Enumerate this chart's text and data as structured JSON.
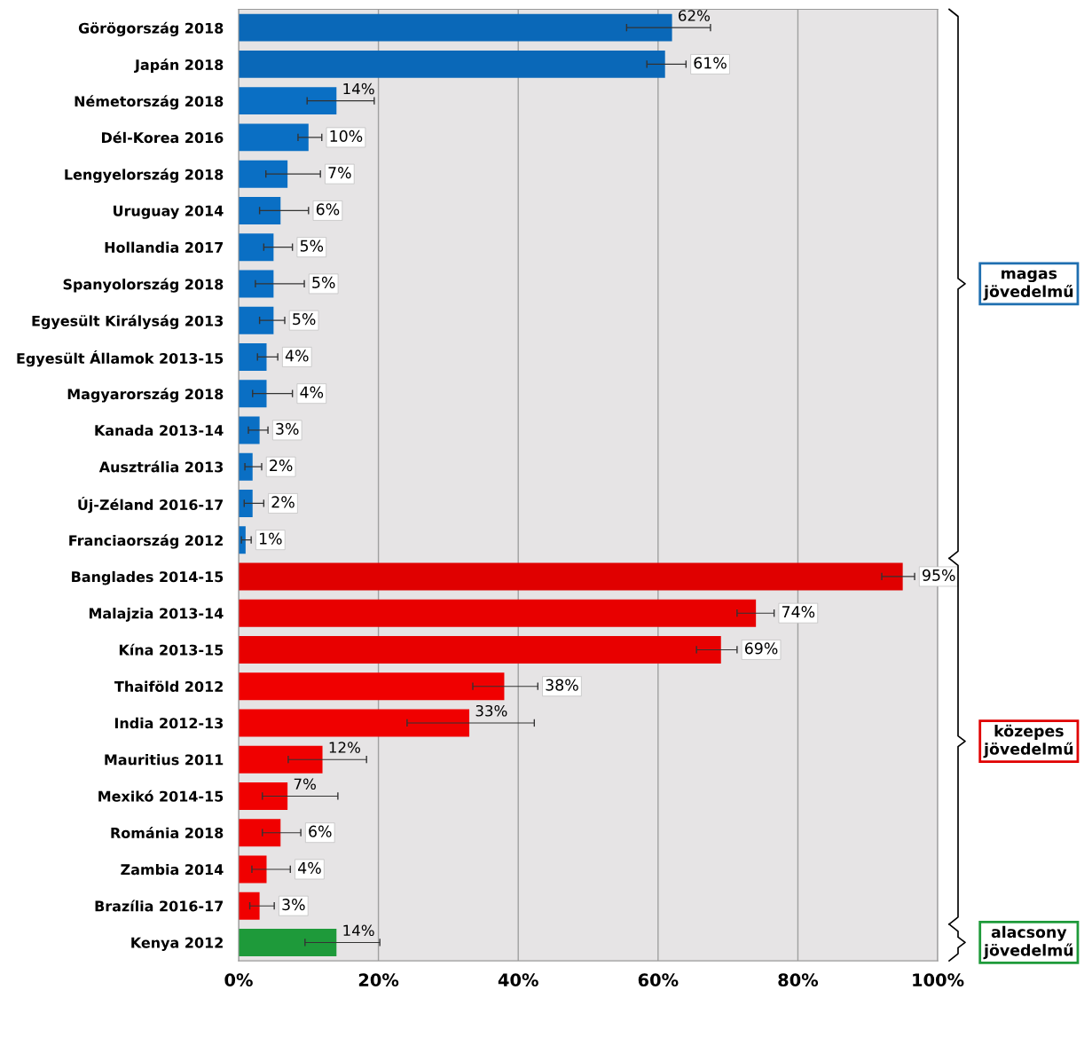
{
  "chart_data": {
    "type": "bar",
    "orientation": "horizontal",
    "categories": [
      "Görögország 2018",
      "Japán 2018",
      "Németország 2018",
      "Dél-Korea 2016",
      "Lengyelország 2018",
      "Uruguay 2014",
      "Hollandia 2017",
      "Spanyolország 2018",
      "Egyesült Királyság 2013",
      "Egyesült Államok 2013-15",
      "Magyarország 2018",
      "Kanada 2013-14",
      "Ausztrália 2013",
      "Új-Zéland 2016-17",
      "Franciaország 2012",
      "Banglades 2014-15",
      "Malajzia 2013-14",
      "Kína 2013-15",
      "Thaiföld 2012",
      "India 2012-13",
      "Mauritius 2011",
      "Mexikó 2014-15",
      "Románia 2018",
      "Zambia 2014",
      "Brazília 2016-17",
      "Kenya 2012"
    ],
    "values": [
      62,
      61,
      14,
      10,
      7,
      6,
      5,
      5,
      5,
      4,
      4,
      3,
      2,
      2,
      1,
      95,
      74,
      69,
      38,
      33,
      12,
      7,
      6,
      4,
      3,
      14
    ],
    "value_labels": [
      "62%",
      "61%",
      "14%",
      "10%",
      "7%",
      "6%",
      "5%",
      "5%",
      "5%",
      "4%",
      "4%",
      "3%",
      "2%",
      "2%",
      "1%",
      "95%",
      "74%",
      "69%",
      "38%",
      "33%",
      "12%",
      "7%",
      "6%",
      "4%",
      "3%",
      "14%"
    ],
    "errors": [
      [
        55.5,
        67.5
      ],
      [
        58.4,
        64.0
      ],
      [
        9.8,
        19.4
      ],
      [
        8.5,
        11.9
      ],
      [
        3.9,
        11.7
      ],
      [
        3.0,
        10.0
      ],
      [
        3.6,
        7.7
      ],
      [
        2.4,
        9.4
      ],
      [
        3.0,
        6.6
      ],
      [
        2.7,
        5.6
      ],
      [
        2.0,
        7.7
      ],
      [
        1.4,
        4.2
      ],
      [
        0.9,
        3.3
      ],
      [
        0.8,
        3.6
      ],
      [
        0.4,
        1.8
      ],
      [
        92.0,
        96.7
      ],
      [
        71.3,
        76.6
      ],
      [
        65.5,
        71.3
      ],
      [
        33.5,
        42.8
      ],
      [
        24.1,
        42.3
      ],
      [
        7.1,
        18.3
      ],
      [
        3.4,
        14.2
      ],
      [
        3.4,
        8.9
      ],
      [
        1.9,
        7.4
      ],
      [
        1.6,
        5.1
      ],
      [
        9.5,
        20.2
      ]
    ],
    "colors": [
      "#0a68b8",
      "#0a68b8",
      "#0a6fc4",
      "#0a6fc4",
      "#0a6fc4",
      "#0a6fc4",
      "#0a6fc4",
      "#0a6fc4",
      "#0a6fc4",
      "#0a6fc4",
      "#0a6fc4",
      "#0a6fc4",
      "#0a6fc4",
      "#0a6fc4",
      "#0a6fc4",
      "#e00000",
      "#e80000",
      "#e80000",
      "#f00000",
      "#f00000",
      "#f00000",
      "#f00000",
      "#f00000",
      "#f00000",
      "#f00000",
      "#1e9a3a"
    ],
    "xlim": [
      0,
      100
    ],
    "xticks": [
      {
        "value": 0,
        "label": "0%"
      },
      {
        "value": 20,
        "label": "20%"
      },
      {
        "value": 40,
        "label": "40%"
      },
      {
        "value": 60,
        "label": "60%"
      },
      {
        "value": 80,
        "label": "80%"
      },
      {
        "value": 100,
        "label": "100%"
      }
    ],
    "grid": "x",
    "legend": false,
    "annotations": [
      "magas\njövedelmű",
      "közepes\njövedelmű",
      "alacsony\njövedelmű"
    ]
  }
}
